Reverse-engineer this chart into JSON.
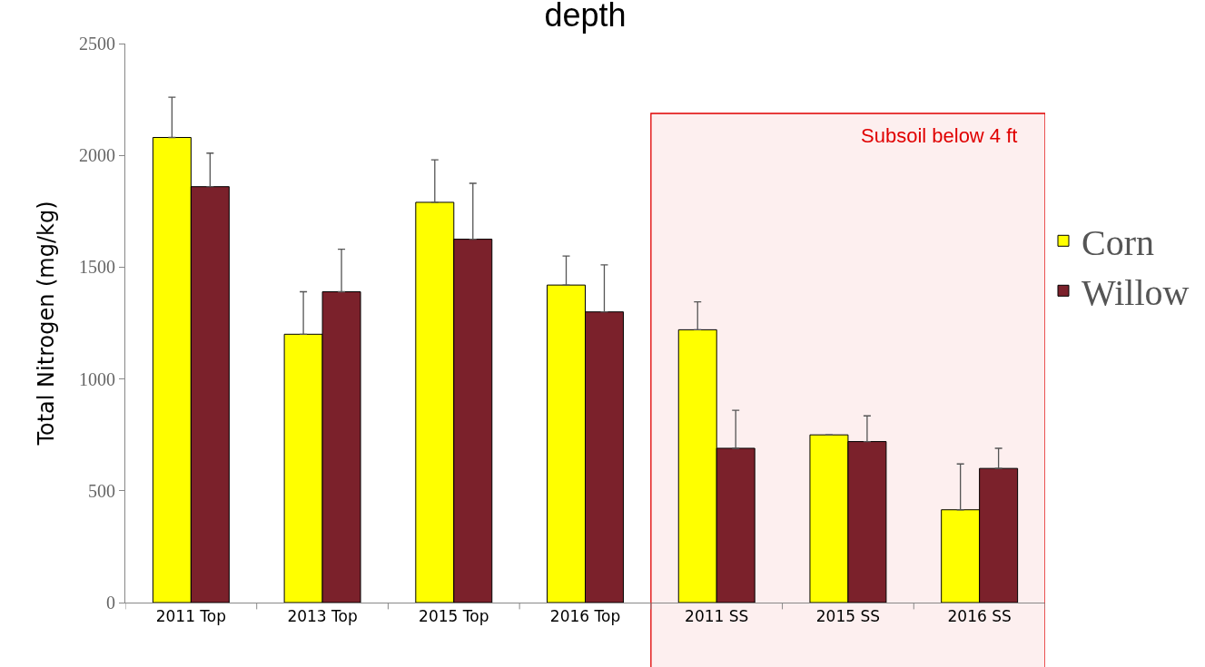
{
  "chart_data": {
    "type": "bar",
    "title": "depth",
    "ylabel": "Total Nitrogen (mg/kg)",
    "categories": [
      "2011 Top",
      "2013 Top",
      "2015 Top",
      "2016 Top",
      "2011 SS",
      "2015 SS",
      "2016 SS"
    ],
    "series": [
      {
        "name": "Corn",
        "color": "#ffff00",
        "values": [
          2080,
          1200,
          1790,
          1420,
          1220,
          750,
          415
        ],
        "errors": [
          [
            2080,
            2260
          ],
          [
            1200,
            1390
          ],
          [
            1790,
            1980
          ],
          [
            1420,
            1550
          ],
          [
            1220,
            1345
          ],
          null,
          [
            415,
            620
          ]
        ]
      },
      {
        "name": "Willow",
        "color": "#7b212b",
        "values": [
          1860,
          1390,
          1625,
          1300,
          690,
          720,
          600
        ],
        "errors": [
          [
            1860,
            2010
          ],
          [
            1390,
            1580
          ],
          [
            1625,
            1875
          ],
          [
            1300,
            1510
          ],
          [
            690,
            860
          ],
          [
            720,
            835
          ],
          [
            600,
            690
          ]
        ]
      }
    ],
    "ylim": [
      0,
      2500
    ],
    "yticks": [
      0,
      500,
      1000,
      1500,
      2000,
      2500
    ],
    "grid": false,
    "legend": "right",
    "bands": [
      {
        "axis": "x",
        "from": "2011 SS",
        "to": "2016 SS",
        "label": "Subsoil below 4 ft",
        "color": "#e00000"
      }
    ]
  }
}
